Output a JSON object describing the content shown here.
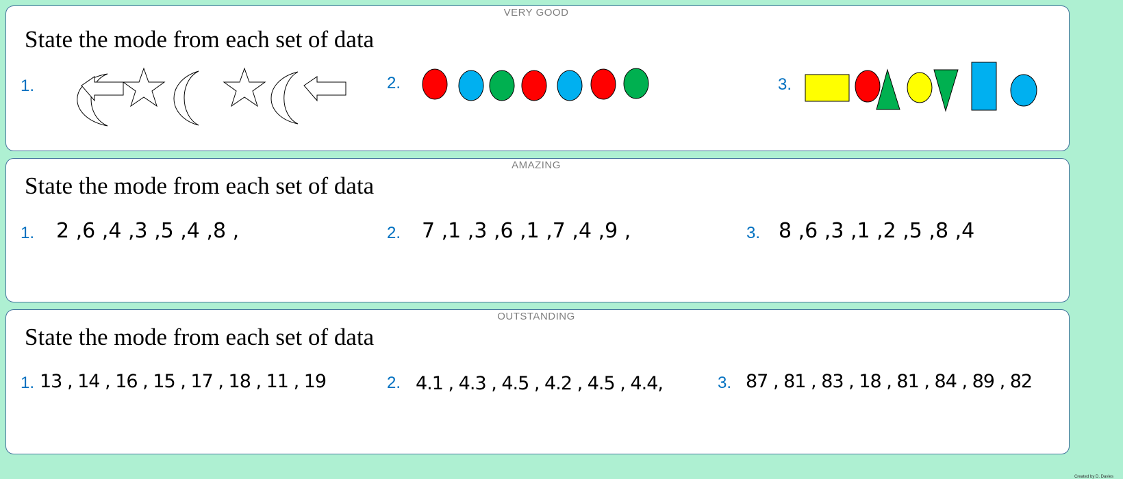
{
  "sections": [
    {
      "level": "VERY GOOD",
      "title": "State the mode from each set of data",
      "items": [
        {
          "number": "1.",
          "shapes": [
            "moon",
            "arrow-left",
            "star",
            "moon",
            "star",
            "moon",
            "arrow-left"
          ]
        },
        {
          "number": "2.",
          "shapes": [
            "red-oval",
            "blue-oval",
            "green-oval",
            "red-oval",
            "blue-oval",
            "red-oval",
            "green-oval"
          ]
        },
        {
          "number": "3.",
          "shapes": [
            "yellow-rectangle",
            "red-oval",
            "green-triangle",
            "yellow-oval",
            "green-triangle-inverted",
            "blue-rectangle",
            "blue-oval"
          ]
        }
      ]
    },
    {
      "level": "AMAZING",
      "title": "State the mode from each set of data",
      "items": [
        {
          "number": "1.",
          "data": "2 ,6 ,4 ,3 ,5 ,4 ,8 ,"
        },
        {
          "number": "2.",
          "data": "7 ,1 ,3 ,6 ,1 ,7 ,4 ,9 ,"
        },
        {
          "number": "3.",
          "data": "8 ,6 ,3 ,1 ,2 ,5 ,8 ,4"
        }
      ]
    },
    {
      "level": "OUTSTANDING",
      "title": "State the mode from each set of data",
      "items": [
        {
          "number": "1.",
          "data": "13 , 14 , 16 , 15 , 17 , 18 , 11 , 19"
        },
        {
          "number": "2.",
          "data": "4.1 , 4.3 , 4.5 , 4.2 , 4.5 , 4.4,"
        },
        {
          "number": "3.",
          "data": "87 , 81 , 83 , 18 , 81 , 84 , 89 , 82"
        }
      ]
    }
  ],
  "colors": {
    "red": "#ff0000",
    "blue": "#00b0f0",
    "green": "#00b050",
    "yellow": "#ffff00",
    "number": "#0070c0",
    "background": "#aef0d2"
  },
  "credit": "Created by D. Davies"
}
